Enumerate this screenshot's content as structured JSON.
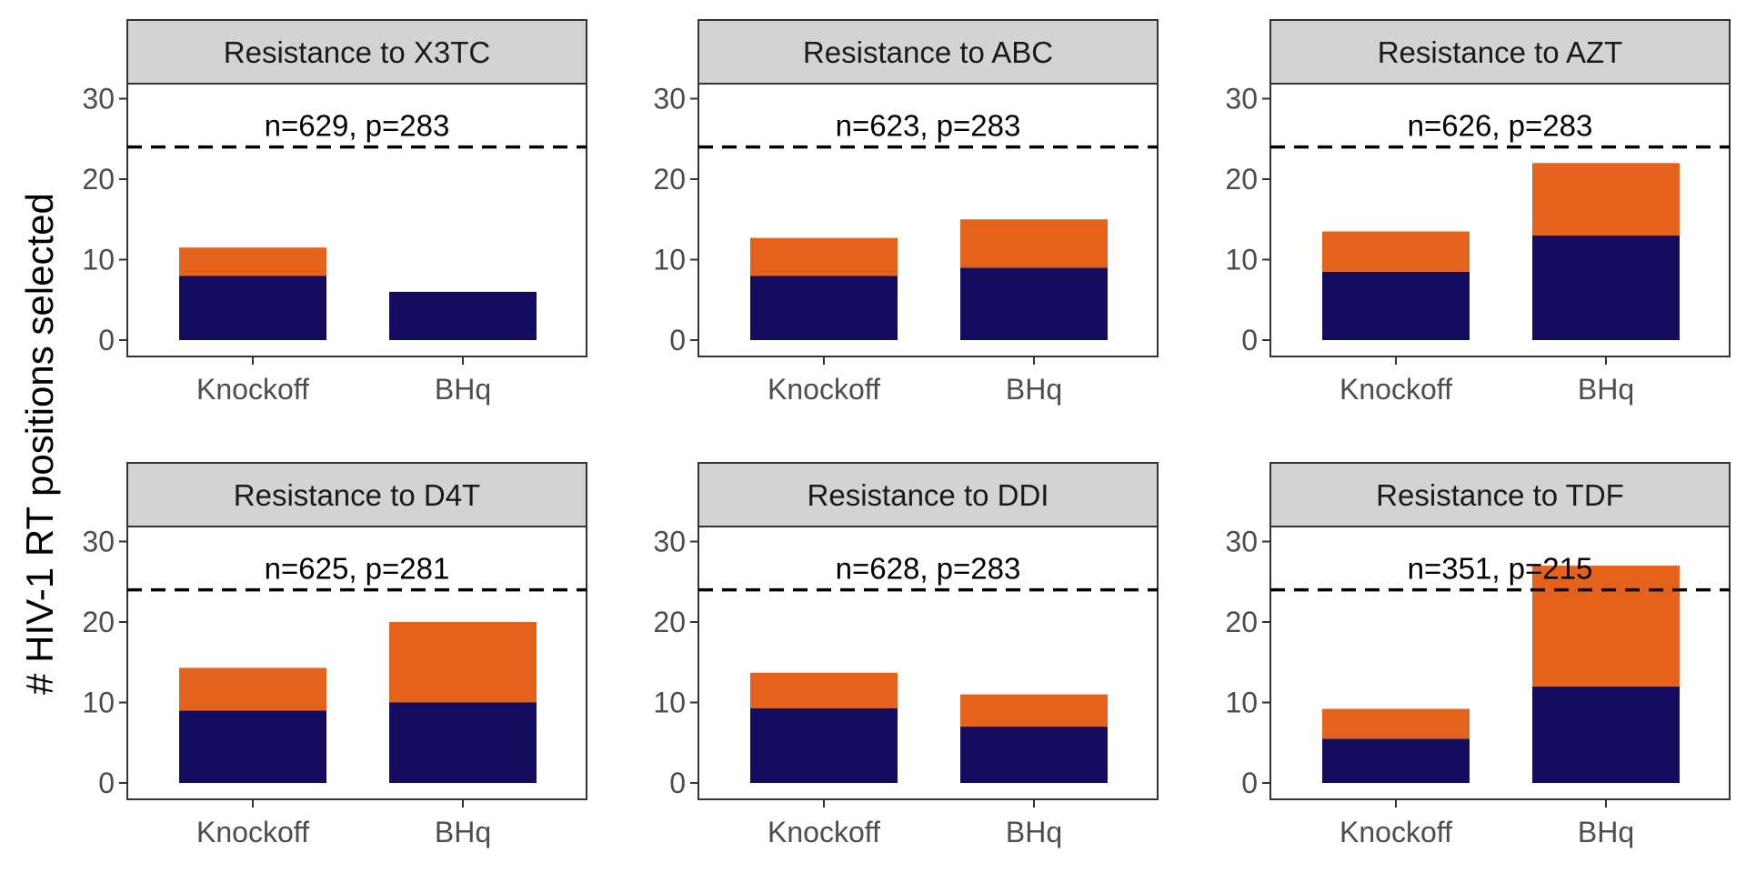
{
  "chart_data": {
    "type": "bar",
    "stacked": true,
    "ylabel": "# HIV-1 RT positions selected",
    "ylim": [
      0,
      33
    ],
    "yticks": [
      0,
      10,
      20,
      30
    ],
    "categories": [
      "Knockoff",
      "BHq"
    ],
    "reference_line": {
      "value": 24,
      "style": "dashed"
    },
    "colors": {
      "lower": "#140c5e",
      "upper": "#e5621c",
      "strip_fill": "#d3d3d3",
      "border": "#333333",
      "reference": "#000000"
    },
    "grid": false,
    "legend": "none",
    "panels": [
      {
        "title": "Resistance to X3TC",
        "annotation": "n=629, p=283",
        "series": [
          {
            "values": [
              8,
              6
            ]
          },
          {
            "values": [
              3.5,
              0
            ]
          }
        ]
      },
      {
        "title": "Resistance to ABC",
        "annotation": "n=623, p=283",
        "series": [
          {
            "values": [
              8,
              9
            ]
          },
          {
            "values": [
              4.7,
              6
            ]
          }
        ]
      },
      {
        "title": "Resistance to AZT",
        "annotation": "n=626, p=283",
        "series": [
          {
            "values": [
              8.5,
              13
            ]
          },
          {
            "values": [
              5,
              9
            ]
          }
        ]
      },
      {
        "title": "Resistance to D4T",
        "annotation": "n=625, p=281",
        "series": [
          {
            "values": [
              9,
              10
            ]
          },
          {
            "values": [
              5.3,
              10
            ]
          }
        ]
      },
      {
        "title": "Resistance to DDI",
        "annotation": "n=628, p=283",
        "series": [
          {
            "values": [
              9.3,
              7
            ]
          },
          {
            "values": [
              4.4,
              4
            ]
          }
        ]
      },
      {
        "title": "Resistance to TDF",
        "annotation": "n=351, p=215",
        "series": [
          {
            "values": [
              5.5,
              12
            ]
          },
          {
            "values": [
              3.7,
              15
            ]
          }
        ]
      }
    ]
  }
}
